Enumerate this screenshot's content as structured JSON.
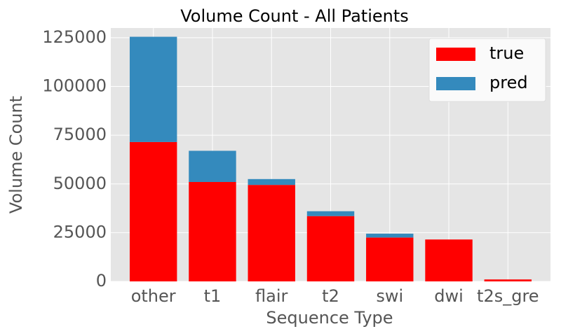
{
  "chart_data": {
    "type": "stacked_bar",
    "title": "Volume Count - All Patients",
    "x_label": "Sequence Type",
    "y_label": "Volume Count",
    "categories": [
      "other",
      "t1",
      "flair",
      "t2",
      "swi",
      "dwi",
      "t2s_gre"
    ],
    "series": [
      {
        "name": "true",
        "color": "#ff0000",
        "values": [
          71500,
          51000,
          49500,
          33500,
          22500,
          21500,
          1000
        ]
      },
      {
        "name": "pred",
        "color": "#348abd",
        "values": [
          54000,
          16000,
          3000,
          2500,
          2000,
          0,
          0
        ]
      }
    ],
    "ylim": [
      0,
      130000
    ],
    "yticks": [
      0,
      25000,
      50000,
      75000,
      100000,
      125000
    ],
    "grid": true,
    "legend": "upper right"
  }
}
